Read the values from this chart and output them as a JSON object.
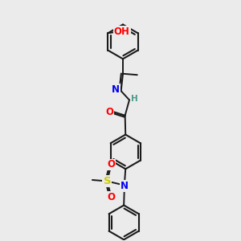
{
  "bg_color": "#ebebeb",
  "bond_color": "#1a1a1a",
  "atom_colors": {
    "O": "#ff0000",
    "N": "#0000ee",
    "S": "#cccc00",
    "H": "#4a9a8a",
    "C": "#1a1a1a"
  },
  "font_size": 8.5,
  "fig_size": [
    3.0,
    3.0
  ],
  "dpi": 100
}
